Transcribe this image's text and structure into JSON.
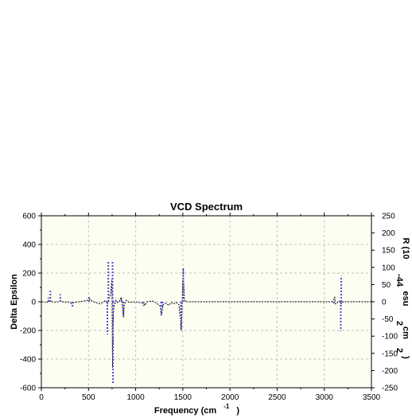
{
  "chart_data": {
    "type": "line",
    "title": "VCD Spectrum",
    "xlabel": {
      "main": "Frequency (cm",
      "superscript": "-1",
      "close": ")"
    },
    "ylabel": "Delta Epsilon",
    "y2label": {
      "parts": [
        "R (10",
        "-44",
        "esu",
        "2",
        "cm",
        "2",
        ")"
      ]
    },
    "xlim": [
      0,
      3500
    ],
    "ylim": [
      -600,
      600
    ],
    "y2lim": [
      -250,
      250
    ],
    "x_ticks": [
      0,
      500,
      1000,
      1500,
      2000,
      2500,
      3000,
      3500
    ],
    "y_ticks": [
      -600,
      -400,
      -200,
      0,
      200,
      400,
      600
    ],
    "y2_ticks": [
      -250,
      -200,
      -150,
      -100,
      -50,
      0,
      50,
      100,
      150,
      200,
      250
    ],
    "grid": true,
    "background": "#fdfdf2",
    "colors": {
      "spectrum": "#000000",
      "sticks": "#4a4ad8",
      "grid": "#c0c0c0"
    },
    "series": [
      {
        "style": "dashed-line",
        "axis": "left",
        "points": [
          [
            0,
            0
          ],
          [
            60,
            -5
          ],
          [
            80,
            8
          ],
          [
            100,
            3
          ],
          [
            130,
            -3
          ],
          [
            180,
            0
          ],
          [
            210,
            6
          ],
          [
            240,
            -4
          ],
          [
            280,
            0
          ],
          [
            320,
            -12
          ],
          [
            350,
            -5
          ],
          [
            400,
            0
          ],
          [
            450,
            5
          ],
          [
            500,
            12
          ],
          [
            520,
            18
          ],
          [
            540,
            2
          ],
          [
            580,
            -5
          ],
          [
            620,
            -15
          ],
          [
            650,
            -5
          ],
          [
            680,
            10
          ],
          [
            700,
            -12
          ],
          [
            720,
            30
          ],
          [
            735,
            60
          ],
          [
            748,
            160
          ],
          [
            755,
            -460
          ],
          [
            762,
            -80
          ],
          [
            775,
            -20
          ],
          [
            790,
            10
          ],
          [
            810,
            -5
          ],
          [
            830,
            5
          ],
          [
            845,
            30
          ],
          [
            860,
            -30
          ],
          [
            870,
            -110
          ],
          [
            880,
            -20
          ],
          [
            900,
            10
          ],
          [
            930,
            -5
          ],
          [
            1000,
            0
          ],
          [
            1080,
            -10
          ],
          [
            1100,
            -25
          ],
          [
            1120,
            0
          ],
          [
            1180,
            5
          ],
          [
            1220,
            -10
          ],
          [
            1260,
            -30
          ],
          [
            1275,
            -90
          ],
          [
            1290,
            -20
          ],
          [
            1320,
            -10
          ],
          [
            1350,
            -25
          ],
          [
            1380,
            -5
          ],
          [
            1400,
            -15
          ],
          [
            1430,
            -5
          ],
          [
            1460,
            -20
          ],
          [
            1485,
            -200
          ],
          [
            1495,
            60
          ],
          [
            1505,
            230
          ],
          [
            1515,
            20
          ],
          [
            1530,
            0
          ],
          [
            1600,
            0
          ],
          [
            2000,
            0
          ],
          [
            2500,
            0
          ],
          [
            3000,
            0
          ],
          [
            3080,
            0
          ],
          [
            3100,
            15
          ],
          [
            3110,
            30
          ],
          [
            3120,
            -15
          ],
          [
            3140,
            -5
          ],
          [
            3160,
            5
          ],
          [
            3180,
            -15
          ],
          [
            3200,
            0
          ],
          [
            3500,
            0
          ]
        ]
      },
      {
        "style": "sticks",
        "axis": "right",
        "sticks": [
          [
            75,
            12
          ],
          [
            95,
            32
          ],
          [
            200,
            22
          ],
          [
            330,
            -15
          ],
          [
            505,
            15
          ],
          [
            700,
            -95
          ],
          [
            710,
            120
          ],
          [
            755,
            120
          ],
          [
            760,
            -240
          ],
          [
            790,
            10
          ],
          [
            850,
            12
          ],
          [
            870,
            -45
          ],
          [
            1085,
            -12
          ],
          [
            1270,
            -40
          ],
          [
            1285,
            -15
          ],
          [
            1480,
            -80
          ],
          [
            1500,
            8
          ],
          [
            1505,
            100
          ],
          [
            3100,
            -5
          ],
          [
            3175,
            -85
          ],
          [
            3180,
            75
          ]
        ]
      }
    ]
  }
}
